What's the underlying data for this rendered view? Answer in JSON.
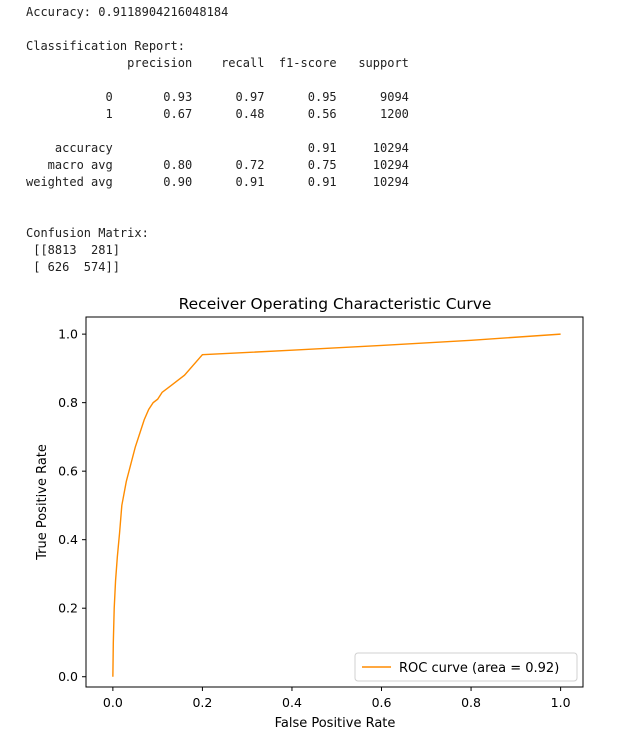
{
  "output": {
    "accuracy_line": "Accuracy: 0.9118904216048184",
    "report_title": "Classification Report:",
    "report_header": "              precision    recall  f1-score   support",
    "report_row_0": "           0       0.93      0.97      0.95      9094",
    "report_row_1": "           1       0.67      0.48      0.56      1200",
    "report_accuracy": "    accuracy                           0.91     10294",
    "report_macro": "   macro avg       0.80      0.72      0.75     10294",
    "report_weighted": "weighted avg       0.90      0.91      0.91     10294",
    "cm_title": "Confusion Matrix:",
    "cm_row_1": " [[8813  281]",
    "cm_row_2": " [ 626  574]]"
  },
  "chart_data": {
    "type": "line",
    "title": "Receiver Operating Characteristic Curve",
    "xlabel": "False Positive Rate",
    "ylabel": "True Positive Rate",
    "xlim": [
      -0.06,
      1.05
    ],
    "ylim": [
      -0.03,
      1.05
    ],
    "xticks": [
      "0.0",
      "0.2",
      "0.4",
      "0.6",
      "0.8",
      "1.0"
    ],
    "yticks": [
      "0.0",
      "0.2",
      "0.4",
      "0.6",
      "0.8",
      "1.0"
    ],
    "grid": false,
    "legend_position": "bottom-right",
    "series": [
      {
        "name": "ROC curve (area = 0.92)",
        "color": "#ff8c00",
        "x": [
          0.0,
          0.001,
          0.003,
          0.006,
          0.01,
          0.015,
          0.02,
          0.03,
          0.04,
          0.05,
          0.06,
          0.07,
          0.08,
          0.09,
          0.1,
          0.11,
          0.13,
          0.16,
          0.2,
          0.4,
          0.6,
          0.8,
          1.0
        ],
        "y": [
          0.0,
          0.1,
          0.2,
          0.28,
          0.35,
          0.42,
          0.5,
          0.57,
          0.62,
          0.67,
          0.71,
          0.75,
          0.78,
          0.8,
          0.81,
          0.83,
          0.85,
          0.88,
          0.94,
          0.953,
          0.967,
          0.982,
          1.0
        ]
      }
    ]
  }
}
